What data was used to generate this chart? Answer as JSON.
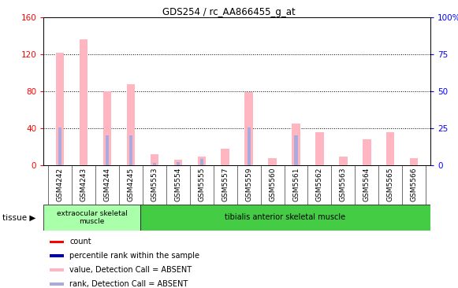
{
  "title": "GDS254 / rc_AA866455_g_at",
  "categories": [
    "GSM4242",
    "GSM4243",
    "GSM4244",
    "GSM4245",
    "GSM5553",
    "GSM5554",
    "GSM5555",
    "GSM5557",
    "GSM5559",
    "GSM5560",
    "GSM5561",
    "GSM5562",
    "GSM5563",
    "GSM5564",
    "GSM5565",
    "GSM5566"
  ],
  "pink_values": [
    122,
    136,
    80,
    88,
    12,
    6,
    10,
    18,
    79,
    8,
    45,
    36,
    10,
    28,
    36,
    8
  ],
  "blue_values": [
    41,
    0,
    33,
    33,
    3,
    4,
    7,
    0,
    41,
    0,
    33,
    0,
    0,
    0,
    0,
    0
  ],
  "ylim_left": [
    0,
    160
  ],
  "ylim_right": [
    0,
    100
  ],
  "yticks_left": [
    0,
    40,
    80,
    120,
    160
  ],
  "yticks_right": [
    0,
    25,
    50,
    75,
    100
  ],
  "yticklabels_right": [
    "0",
    "25",
    "50",
    "75",
    "100%"
  ],
  "color_pink": "#FFB6C1",
  "color_light_blue": "#AAAADD",
  "color_red": "#FF0000",
  "color_dark_blue": "#0000BB",
  "tissue1_color": "#AAFFAA",
  "tissue2_color": "#44CC44",
  "tissue1_label": "extraocular skeletal\nmuscle",
  "tissue2_label": "tibialis anterior skeletal muscle",
  "tissue1_count": 4,
  "bar_width": 0.35,
  "legend_items": [
    {
      "color": "#FF0000",
      "label": "count"
    },
    {
      "color": "#0000BB",
      "label": "percentile rank within the sample"
    },
    {
      "color": "#FFB6C1",
      "label": "value, Detection Call = ABSENT"
    },
    {
      "color": "#AAAADD",
      "label": "rank, Detection Call = ABSENT"
    }
  ],
  "bg_color": "#FFFFFF",
  "plot_bg_color": "#FFFFFF",
  "xticklabel_bg": "#DDDDDD"
}
